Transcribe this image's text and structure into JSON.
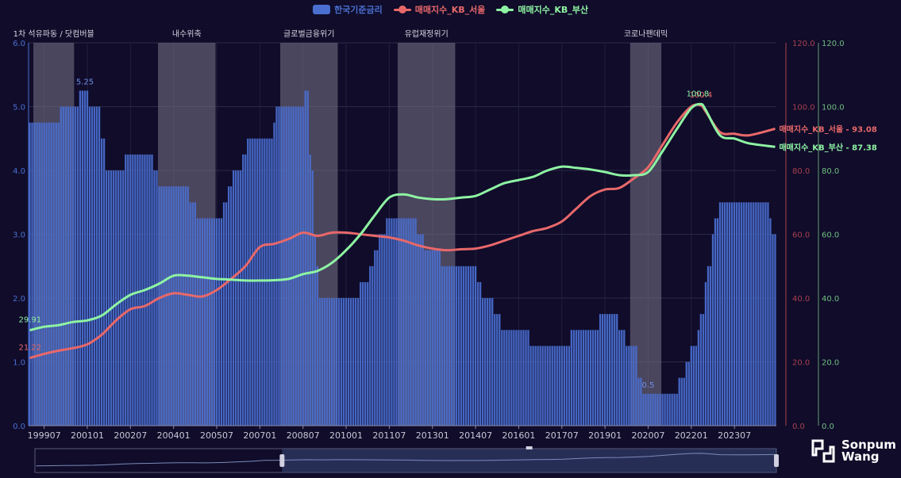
{
  "legend": {
    "items": [
      {
        "label": "한국기준금리",
        "color": "#4a6fd0",
        "kind": "bar"
      },
      {
        "label": "매매지수_KB_서울",
        "color": "#e8686a",
        "kind": "line"
      },
      {
        "label": "매매지수_KB_부산",
        "color": "#8ef4a3",
        "kind": "line"
      }
    ]
  },
  "branding": {
    "line1": "Sonpum",
    "line2": "Wang"
  },
  "chart_data": {
    "type": "bar+line",
    "x_ticks": [
      "199907",
      "200101",
      "200207",
      "200401",
      "200507",
      "200701",
      "200807",
      "201001",
      "201107",
      "201301",
      "201407",
      "201601",
      "201707",
      "201901",
      "202007",
      "202201",
      "202307"
    ],
    "x_range": [
      "199901",
      "202412"
    ],
    "left_axis": {
      "ylim": [
        0,
        6
      ],
      "ticks": [
        "0.0",
        "1.0",
        "2.0",
        "3.0",
        "4.0",
        "5.0",
        "6.0"
      ]
    },
    "right_axis_seoul": {
      "ylim": [
        0,
        120
      ],
      "ticks": [
        "0.0",
        "20.0",
        "40.0",
        "60.0",
        "80.0",
        "100.0",
        "120.0"
      ]
    },
    "right_axis_busan": {
      "ylim": [
        0,
        120
      ],
      "ticks": [
        "0.0",
        "20.0",
        "40.0",
        "60.0",
        "80.0",
        "100.0",
        "120.0"
      ]
    },
    "crisis_periods": [
      {
        "label": "1차 석유파동 / 닷컴버블",
        "start": "199903",
        "end": "200007"
      },
      {
        "label": "내수위축",
        "start": "200307",
        "end": "200506"
      },
      {
        "label": "글로벌금융위기",
        "start": "200710",
        "end": "200909"
      },
      {
        "label": "유럽재정위기",
        "start": "201111",
        "end": "201310"
      },
      {
        "label": "코로나팬데믹",
        "start": "201912",
        "end": "202012"
      }
    ],
    "base_rate": {
      "name": "한국기준금리",
      "steps": [
        [
          "199901",
          4.75
        ],
        [
          "200002",
          5.0
        ],
        [
          "200010",
          5.25
        ],
        [
          "200102",
          5.0
        ],
        [
          "200107",
          4.5
        ],
        [
          "200109",
          4.0
        ],
        [
          "200205",
          4.25
        ],
        [
          "200305",
          4.0
        ],
        [
          "200307",
          3.75
        ],
        [
          "200408",
          3.5
        ],
        [
          "200411",
          3.25
        ],
        [
          "200510",
          3.5
        ],
        [
          "200512",
          3.75
        ],
        [
          "200602",
          4.0
        ],
        [
          "200606",
          4.25
        ],
        [
          "200608",
          4.5
        ],
        [
          "200707",
          4.75
        ],
        [
          "200708",
          5.0
        ],
        [
          "200808",
          5.25
        ],
        [
          "200810",
          4.25
        ],
        [
          "200811",
          4.0
        ],
        [
          "200812",
          3.0
        ],
        [
          "200901",
          2.5
        ],
        [
          "200902",
          2.0
        ],
        [
          "201007",
          2.25
        ],
        [
          "201011",
          2.5
        ],
        [
          "201101",
          2.75
        ],
        [
          "201103",
          3.0
        ],
        [
          "201106",
          3.25
        ],
        [
          "201207",
          3.0
        ],
        [
          "201210",
          2.75
        ],
        [
          "201305",
          2.5
        ],
        [
          "201408",
          2.25
        ],
        [
          "201410",
          2.0
        ],
        [
          "201503",
          1.75
        ],
        [
          "201506",
          1.5
        ],
        [
          "201606",
          1.25
        ],
        [
          "201711",
          1.5
        ],
        [
          "201811",
          1.75
        ],
        [
          "201907",
          1.5
        ],
        [
          "201910",
          1.25
        ],
        [
          "202003",
          0.75
        ],
        [
          "202005",
          0.5
        ],
        [
          "202108",
          0.75
        ],
        [
          "202111",
          1.0
        ],
        [
          "202201",
          1.25
        ],
        [
          "202204",
          1.5
        ],
        [
          "202205",
          1.75
        ],
        [
          "202207",
          2.25
        ],
        [
          "202208",
          2.5
        ],
        [
          "202210",
          3.0
        ],
        [
          "202211",
          3.25
        ],
        [
          "202301",
          3.5
        ],
        [
          "202410",
          3.25
        ],
        [
          "202411",
          3.0
        ]
      ]
    },
    "series": [
      {
        "name": "매매지수_KB_서울",
        "color": "#e8686a",
        "end_label": "매매지수_KB_서울 - 93.08",
        "first_value_label": "21.22",
        "max_value_label": "100.4",
        "points": [
          [
            "199901",
            21.22
          ],
          [
            "199907",
            22.5
          ],
          [
            "200001",
            23.5
          ],
          [
            "200007",
            24.3
          ],
          [
            "200101",
            25.5
          ],
          [
            "200107",
            28.5
          ],
          [
            "200201",
            33.0
          ],
          [
            "200207",
            36.5
          ],
          [
            "200301",
            37.5
          ],
          [
            "200307",
            40.0
          ],
          [
            "200401",
            41.5
          ],
          [
            "200407",
            41.0
          ],
          [
            "200501",
            40.5
          ],
          [
            "200507",
            42.5
          ],
          [
            "200601",
            46.0
          ],
          [
            "200607",
            50.0
          ],
          [
            "200701",
            56.0
          ],
          [
            "200707",
            57.0
          ],
          [
            "200801",
            58.5
          ],
          [
            "200807",
            60.5
          ],
          [
            "200901",
            59.5
          ],
          [
            "200907",
            60.5
          ],
          [
            "201001",
            60.5
          ],
          [
            "201007",
            60.0
          ],
          [
            "201101",
            59.5
          ],
          [
            "201107",
            59.0
          ],
          [
            "201201",
            58.0
          ],
          [
            "201207",
            56.5
          ],
          [
            "201301",
            55.5
          ],
          [
            "201307",
            55.0
          ],
          [
            "201401",
            55.3
          ],
          [
            "201407",
            55.5
          ],
          [
            "201501",
            56.5
          ],
          [
            "201507",
            58.0
          ],
          [
            "201601",
            59.5
          ],
          [
            "201607",
            61.0
          ],
          [
            "201701",
            62.0
          ],
          [
            "201707",
            64.0
          ],
          [
            "201801",
            68.0
          ],
          [
            "201807",
            72.0
          ],
          [
            "201901",
            74.0
          ],
          [
            "201907",
            74.5
          ],
          [
            "202001",
            77.5
          ],
          [
            "202007",
            81.0
          ],
          [
            "202101",
            88.0
          ],
          [
            "202107",
            95.0
          ],
          [
            "202201",
            100.0
          ],
          [
            "202205",
            100.4
          ],
          [
            "202207",
            98.5
          ],
          [
            "202301",
            92.0
          ],
          [
            "202307",
            91.5
          ],
          [
            "202401",
            91.0
          ],
          [
            "202412",
            93.08
          ]
        ]
      },
      {
        "name": "매매지수_KB_부산",
        "color": "#8ef4a3",
        "end_label": "매매지수_KB_부산 - 87.38",
        "first_value_label": "29.91",
        "max_value_label": "100.8",
        "points": [
          [
            "199901",
            29.91
          ],
          [
            "199907",
            31.0
          ],
          [
            "200001",
            31.5
          ],
          [
            "200007",
            32.5
          ],
          [
            "200101",
            33.0
          ],
          [
            "200107",
            34.5
          ],
          [
            "200201",
            38.0
          ],
          [
            "200207",
            41.0
          ],
          [
            "200301",
            42.5
          ],
          [
            "200307",
            44.5
          ],
          [
            "200401",
            47.0
          ],
          [
            "200407",
            47.0
          ],
          [
            "200501",
            46.5
          ],
          [
            "200507",
            46.0
          ],
          [
            "200601",
            45.8
          ],
          [
            "200607",
            45.5
          ],
          [
            "200701",
            45.5
          ],
          [
            "200707",
            45.6
          ],
          [
            "200801",
            46.0
          ],
          [
            "200807",
            47.5
          ],
          [
            "200901",
            48.5
          ],
          [
            "200907",
            51.0
          ],
          [
            "201001",
            55.0
          ],
          [
            "201007",
            60.0
          ],
          [
            "201101",
            66.0
          ],
          [
            "201107",
            71.5
          ],
          [
            "201201",
            72.5
          ],
          [
            "201207",
            71.5
          ],
          [
            "201301",
            71.0
          ],
          [
            "201307",
            71.0
          ],
          [
            "201401",
            71.5
          ],
          [
            "201407",
            72.0
          ],
          [
            "201501",
            74.0
          ],
          [
            "201507",
            76.0
          ],
          [
            "201601",
            77.0
          ],
          [
            "201607",
            78.0
          ],
          [
            "201701",
            80.0
          ],
          [
            "201707",
            81.2
          ],
          [
            "201801",
            80.8
          ],
          [
            "201807",
            80.3
          ],
          [
            "201901",
            79.5
          ],
          [
            "201907",
            78.5
          ],
          [
            "202001",
            78.5
          ],
          [
            "202007",
            79.5
          ],
          [
            "202101",
            86.0
          ],
          [
            "202107",
            93.0
          ],
          [
            "202201",
            99.5
          ],
          [
            "202205",
            100.8
          ],
          [
            "202207",
            99.0
          ],
          [
            "202301",
            91.0
          ],
          [
            "202307",
            90.0
          ],
          [
            "202401",
            88.5
          ],
          [
            "202412",
            87.38
          ]
        ]
      }
    ],
    "annotations": [
      {
        "text": "5.25",
        "series": "한국기준금리",
        "date": "200012",
        "value": 5.25
      },
      {
        "text": "0.5",
        "series": "한국기준금리",
        "date": "202007",
        "value": 0.5
      }
    ]
  }
}
